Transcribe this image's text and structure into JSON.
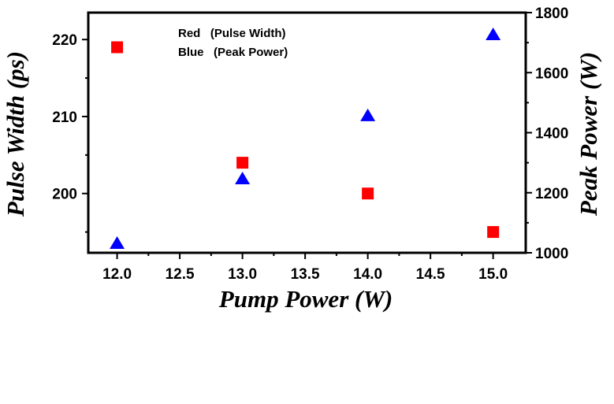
{
  "chart_data": {
    "type": "scatter",
    "xlabel": "Pump Power (W)",
    "ylabel": "Pulse Width (ps)",
    "y2label": "Peak Power (W)",
    "xlim": [
      11.77,
      15.26
    ],
    "ylim": [
      192.3,
      223.5
    ],
    "y2lim": [
      1000,
      1800
    ],
    "x_ticks": [
      "12.0",
      "12.5",
      "13.0",
      "13.5",
      "14.0",
      "14.5",
      "15.0"
    ],
    "y_ticks": [
      "200",
      "210",
      "220"
    ],
    "y2_ticks": [
      "1000",
      "1200",
      "1400",
      "1600",
      "1800"
    ],
    "legend_lines": [
      "Red   (Pulse Width)",
      "Blue   (Peak Power)"
    ],
    "legend_position": "top-left",
    "grid": false,
    "series": [
      {
        "name": "Pulse Width",
        "axis": "left",
        "marker": "square",
        "color": "#ff0000",
        "x": [
          12.0,
          13.0,
          14.0,
          15.0
        ],
        "y": [
          219,
          204,
          200,
          195
        ]
      },
      {
        "name": "Peak Power",
        "axis": "right",
        "marker": "triangle",
        "color": "#0000ff",
        "x": [
          12.0,
          13.0,
          14.0,
          15.0
        ],
        "y": [
          1030,
          1245,
          1455,
          1725
        ]
      }
    ]
  }
}
